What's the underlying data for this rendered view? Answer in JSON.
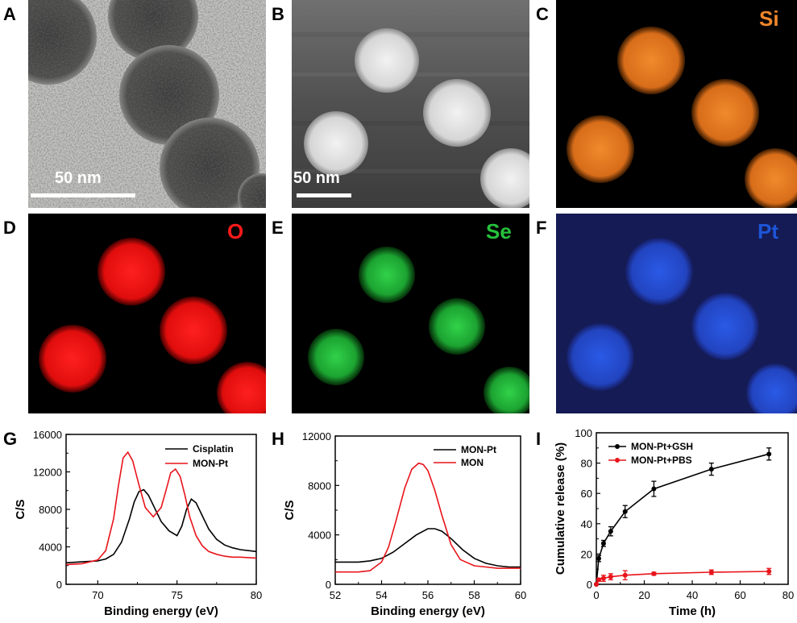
{
  "panels": {
    "A": {
      "label": "A",
      "scale": "50 nm"
    },
    "B": {
      "label": "B",
      "scale": "50 nm"
    },
    "C": {
      "label": "C",
      "element": "Si",
      "color": "#f0852b"
    },
    "D": {
      "label": "D",
      "element": "O",
      "color": "#ff1a1a"
    },
    "E": {
      "label": "E",
      "element": "Se",
      "color": "#25c23c"
    },
    "F": {
      "label": "F",
      "element": "Pt",
      "color": "#1d55d8"
    },
    "G": {
      "label": "G"
    },
    "H": {
      "label": "H"
    },
    "I": {
      "label": "I"
    }
  },
  "chart_data": [
    {
      "panel": "G",
      "type": "line",
      "xlabel": "Binding energy (eV)",
      "ylabel": "C/S",
      "xlim": [
        68,
        80
      ],
      "ylim": [
        0,
        16000
      ],
      "xticks": [
        70,
        75,
        80
      ],
      "yticks": [
        0,
        4000,
        8000,
        12000,
        16000
      ],
      "series": [
        {
          "name": "Cisplatin",
          "color": "#000000",
          "x": [
            68,
            69,
            70,
            70.5,
            71,
            71.5,
            72,
            72.3,
            72.6,
            72.9,
            73.2,
            73.6,
            74,
            74.5,
            75,
            75.3,
            75.6,
            75.9,
            76.2,
            76.6,
            77,
            77.5,
            78,
            78.5,
            79,
            80
          ],
          "y": [
            2300,
            2400,
            2500,
            2700,
            3200,
            4500,
            7000,
            8800,
            9900,
            10100,
            9500,
            8100,
            6700,
            5700,
            5200,
            6200,
            8000,
            9100,
            8700,
            7300,
            5900,
            4800,
            4200,
            3900,
            3700,
            3500
          ]
        },
        {
          "name": "MON-Pt",
          "color": "#e8141b",
          "x": [
            68,
            69,
            70,
            70.5,
            71,
            71.3,
            71.6,
            71.9,
            72.2,
            72.6,
            73,
            73.5,
            74,
            74.3,
            74.6,
            74.9,
            75.2,
            75.5,
            75.8,
            76.2,
            76.6,
            77,
            77.5,
            78,
            78.5,
            79,
            80
          ],
          "y": [
            2100,
            2200,
            2600,
            3600,
            7000,
            10500,
            13500,
            14100,
            13200,
            10600,
            8200,
            7200,
            8200,
            10000,
            11900,
            12300,
            11500,
            9500,
            7200,
            5200,
            4100,
            3500,
            3200,
            3000,
            2900,
            2900,
            2800
          ]
        }
      ]
    },
    {
      "panel": "H",
      "type": "line",
      "xlabel": "Binding energy (eV)",
      "ylabel": "C/S",
      "xlim": [
        52,
        60
      ],
      "ylim": [
        0,
        12000
      ],
      "xticks": [
        52,
        54,
        56,
        58,
        60
      ],
      "yticks": [
        0,
        4000,
        8000,
        12000
      ],
      "series": [
        {
          "name": "MON-Pt",
          "color": "#000000",
          "x": [
            52,
            53,
            53.5,
            54,
            54.5,
            55,
            55.5,
            56,
            56.3,
            56.6,
            57,
            57.5,
            58,
            58.5,
            59,
            59.5,
            60
          ],
          "y": [
            1800,
            1800,
            1900,
            2100,
            2600,
            3300,
            4000,
            4500,
            4500,
            4300,
            3700,
            2800,
            2100,
            1700,
            1500,
            1400,
            1400
          ]
        },
        {
          "name": "MON",
          "color": "#e8141b",
          "x": [
            52,
            53,
            53.5,
            54,
            54.3,
            54.6,
            55,
            55.3,
            55.6,
            55.8,
            56,
            56.3,
            56.6,
            57,
            57.4,
            58,
            58.5,
            59,
            60
          ],
          "y": [
            1000,
            1000,
            1100,
            1800,
            3000,
            5000,
            7800,
            9300,
            9800,
            9700,
            9200,
            7600,
            5600,
            3200,
            2000,
            1500,
            1400,
            1300,
            1300
          ]
        }
      ]
    },
    {
      "panel": "I",
      "type": "line",
      "xlabel": "Time (h)",
      "ylabel": "Cumulative release (%)",
      "xlim": [
        0,
        80
      ],
      "ylim": [
        0,
        100
      ],
      "xticks": [
        0,
        20,
        40,
        60,
        80
      ],
      "yticks": [
        0,
        20,
        40,
        60,
        80,
        100
      ],
      "series": [
        {
          "name": "MON-Pt+GSH",
          "color": "#000000",
          "x": [
            0,
            1,
            3,
            6,
            12,
            24,
            48,
            72
          ],
          "y": [
            0,
            17,
            27,
            35,
            48,
            63,
            76,
            86
          ],
          "err": [
            0,
            2,
            2,
            3,
            4,
            5,
            4,
            4
          ]
        },
        {
          "name": "MON-Pt+PBS",
          "color": "#e8141b",
          "x": [
            0,
            1,
            3,
            6,
            12,
            24,
            48,
            72
          ],
          "y": [
            0,
            3,
            4,
            5,
            6,
            7,
            8,
            8.5
          ],
          "err": [
            0,
            1,
            2,
            2,
            3,
            1,
            1.5,
            2
          ]
        }
      ]
    }
  ]
}
